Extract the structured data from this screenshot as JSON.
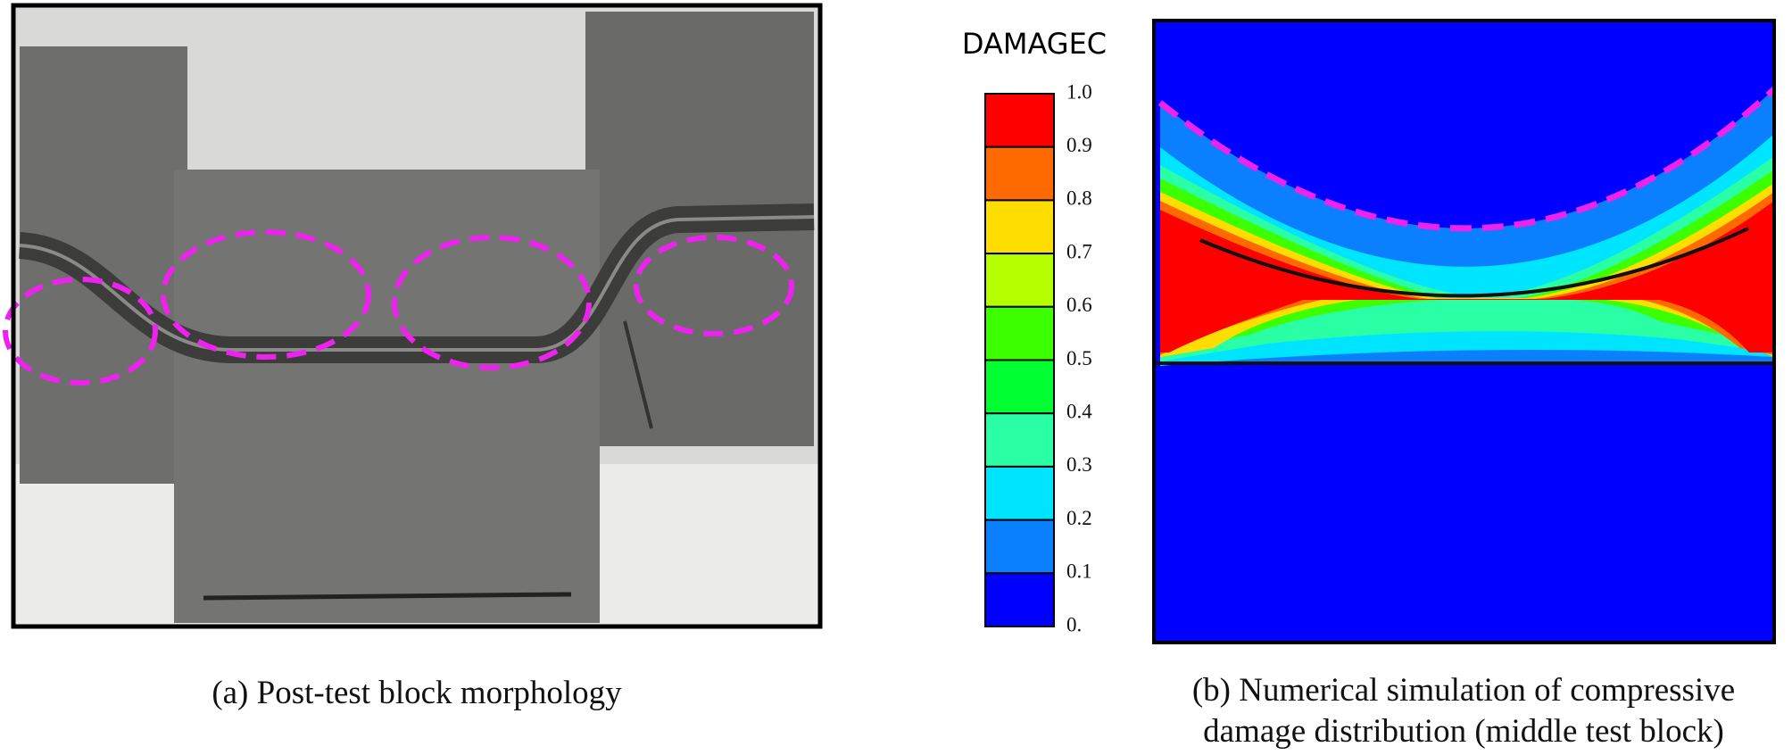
{
  "panel_a": {
    "caption": "(a) Post-test block morphology"
  },
  "panel_b": {
    "legend_title": "DAMAGEC",
    "legend_labels": [
      "1.0",
      "0.9",
      "0.8",
      "0.7",
      "0.6",
      "0.5",
      "0.4",
      "0.3",
      "0.2",
      "0.1",
      "0."
    ],
    "legend_colors": [
      "#ff0000",
      "#ff6a00",
      "#ffdd00",
      "#b4ff00",
      "#3cff00",
      "#00ff30",
      "#2affa5",
      "#00e5ff",
      "#0a80ff",
      "#0000ff"
    ],
    "caption_lines": [
      "(b) Numerical simulation of compressive",
      "damage distribution (middle test block)"
    ]
  }
}
